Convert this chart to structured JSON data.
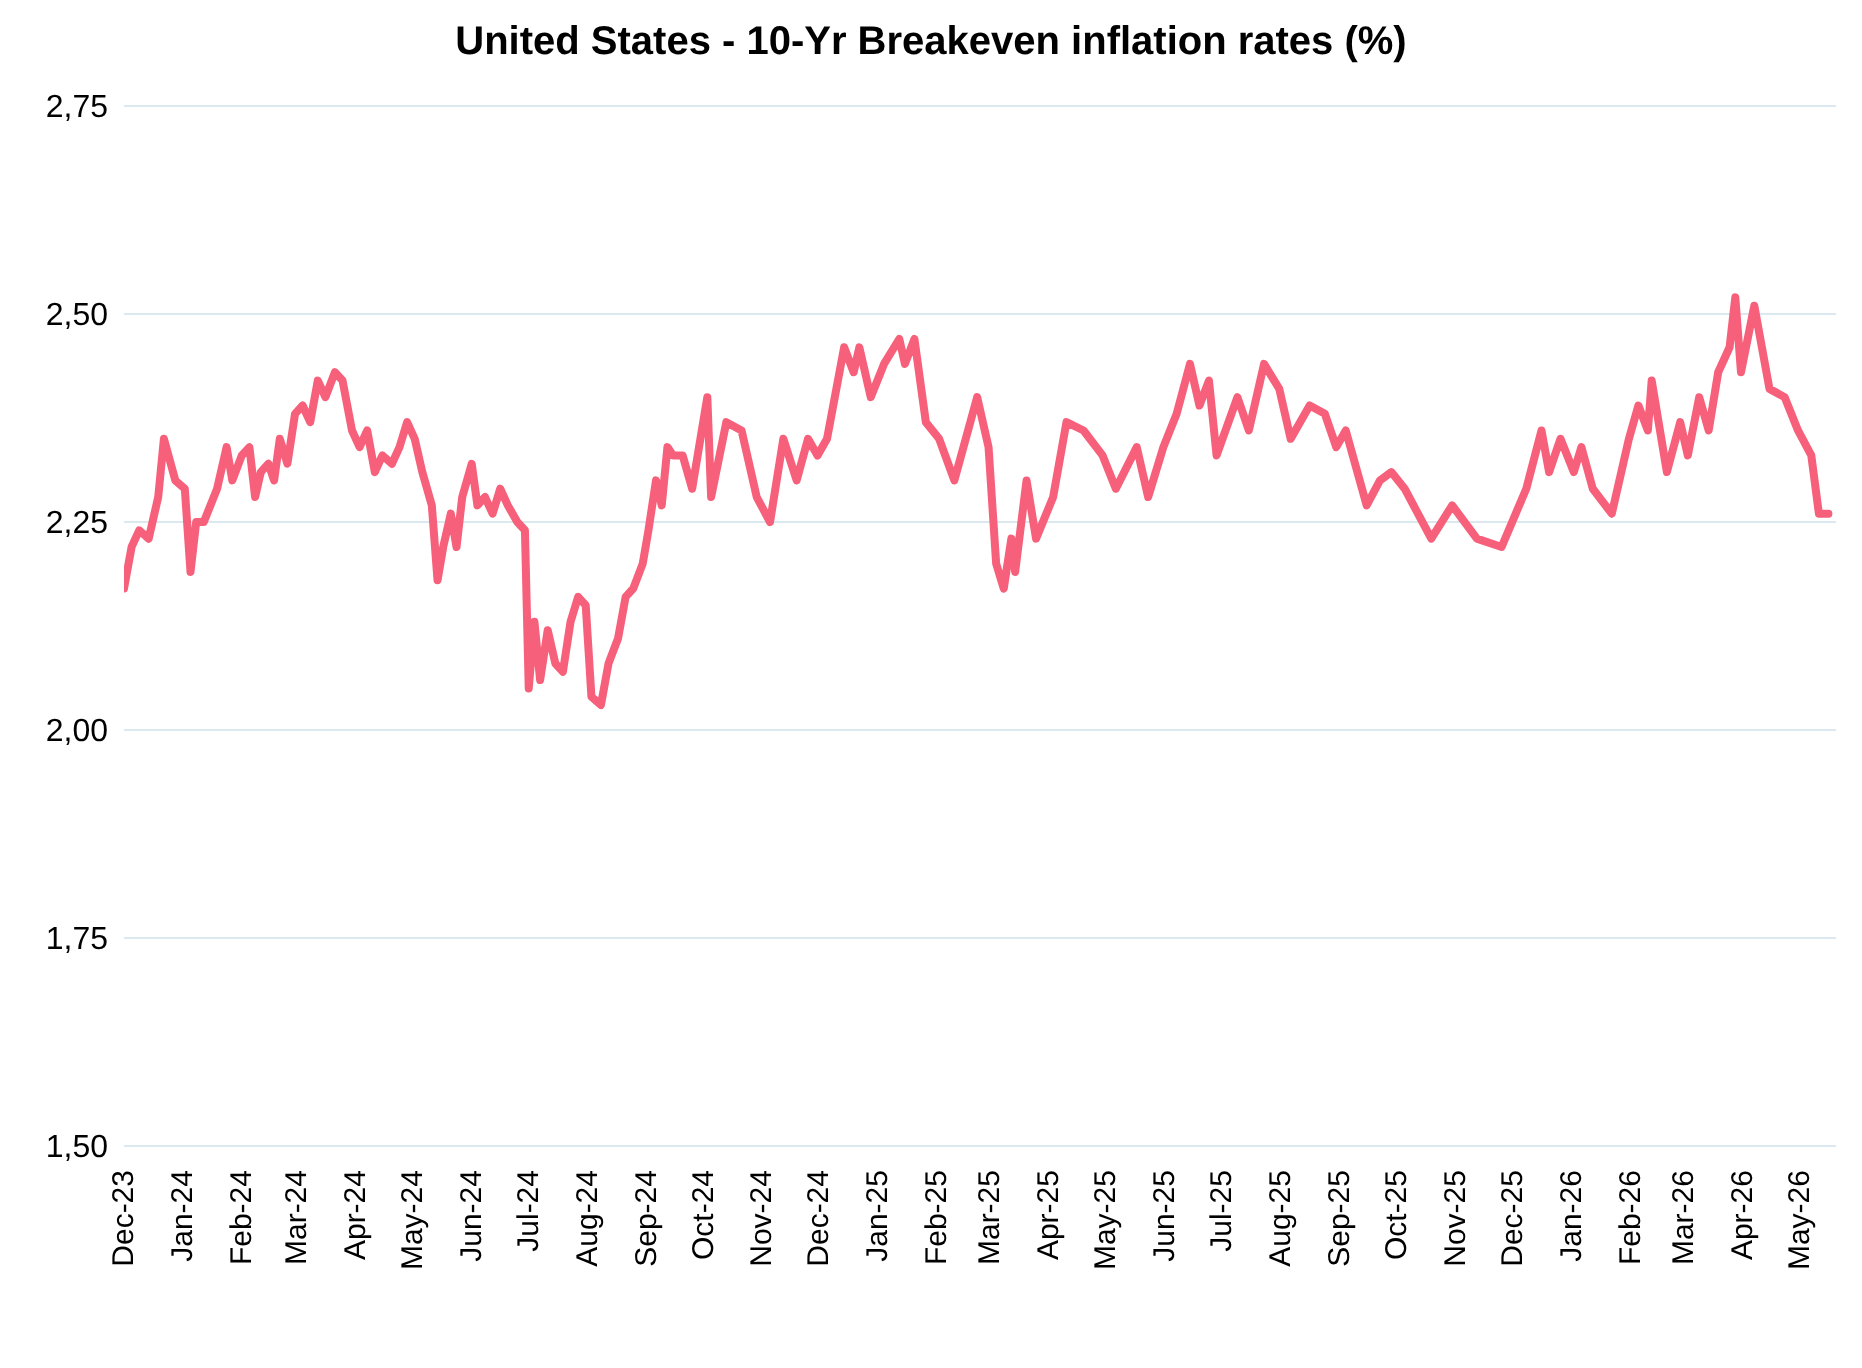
{
  "chart_data": {
    "type": "line",
    "title": "United States - 10-Yr Breakeven inflation rates (%)",
    "color": "#f7607a",
    "grid": "y",
    "marker": "none",
    "line_style": "solid",
    "x": [
      "2023-12-01",
      "2023-12-05",
      "2023-12-09",
      "2023-12-14",
      "2023-12-19",
      "2023-12-22",
      "2023-12-28",
      "2024-01-02",
      "2024-01-05",
      "2024-01-08",
      "2024-01-12",
      "2024-01-19",
      "2024-01-24",
      "2024-01-27",
      "2024-02-01",
      "2024-02-05",
      "2024-02-08",
      "2024-02-11",
      "2024-02-15",
      "2024-02-18",
      "2024-02-21",
      "2024-02-25",
      "2024-02-29",
      "2024-03-04",
      "2024-03-08",
      "2024-03-12",
      "2024-03-16",
      "2024-03-21",
      "2024-03-25",
      "2024-03-30",
      "2024-04-03",
      "2024-04-07",
      "2024-04-11",
      "2024-04-15",
      "2024-04-20",
      "2024-04-24",
      "2024-04-28",
      "2024-05-02",
      "2024-05-06",
      "2024-05-11",
      "2024-05-14",
      "2024-05-17",
      "2024-05-21",
      "2024-05-24",
      "2024-05-27",
      "2024-06-01",
      "2024-06-04",
      "2024-06-08",
      "2024-06-12",
      "2024-06-16",
      "2024-06-20",
      "2024-06-25",
      "2024-06-29",
      "2024-07-01",
      "2024-07-04",
      "2024-07-07",
      "2024-07-11",
      "2024-07-15",
      "2024-07-19",
      "2024-07-23",
      "2024-07-27",
      "2024-07-31",
      "2024-08-03",
      "2024-08-08",
      "2024-08-12",
      "2024-08-17",
      "2024-08-21",
      "2024-08-25",
      "2024-08-30",
      "2024-09-02",
      "2024-09-06",
      "2024-09-09",
      "2024-09-12",
      "2024-09-15",
      "2024-09-20",
      "2024-09-25",
      "2024-10-03",
      "2024-10-05",
      "2024-10-13",
      "2024-10-21",
      "2024-10-29",
      "2024-11-05",
      "2024-11-12",
      "2024-11-19",
      "2024-11-25",
      "2024-11-30",
      "2024-12-05",
      "2024-12-14",
      "2024-12-19",
      "2024-12-22",
      "2024-12-28",
      "2025-01-04",
      "2025-01-12",
      "2025-01-15",
      "2025-01-20",
      "2025-01-26",
      "2025-02-02",
      "2025-02-10",
      "2025-02-22",
      "2025-02-28",
      "2025-03-04",
      "2025-03-08",
      "2025-03-12",
      "2025-03-14",
      "2025-03-20",
      "2025-03-25",
      "2025-04-03",
      "2025-04-10",
      "2025-04-19",
      "2025-04-29",
      "2025-05-06",
      "2025-05-17",
      "2025-05-23",
      "2025-05-31",
      "2025-06-07",
      "2025-06-14",
      "2025-06-19",
      "2025-06-24",
      "2025-06-28",
      "2025-07-09",
      "2025-07-15",
      "2025-07-23",
      "2025-07-31",
      "2025-08-06",
      "2025-08-16",
      "2025-08-24",
      "2025-08-30",
      "2025-09-04",
      "2025-09-15",
      "2025-09-22",
      "2025-09-28",
      "2025-10-05",
      "2025-10-19",
      "2025-10-30",
      "2025-11-12",
      "2025-11-25",
      "2025-12-08",
      "2025-12-16",
      "2025-12-20",
      "2025-12-26",
      "2026-01-02",
      "2026-01-06",
      "2026-01-12",
      "2026-01-22",
      "2026-01-31",
      "2026-02-05",
      "2026-02-10",
      "2026-02-12",
      "2026-02-20",
      "2026-02-27",
      "2026-03-03",
      "2026-03-09",
      "2026-03-14",
      "2026-03-19",
      "2026-03-25",
      "2026-03-28",
      "2026-03-31",
      "2026-04-07",
      "2026-04-15",
      "2026-04-23",
      "2026-04-30",
      "2026-05-07",
      "2026-05-11",
      "2026-05-16"
    ],
    "values": [
      2.17,
      2.22,
      2.24,
      2.23,
      2.28,
      2.35,
      2.3,
      2.29,
      2.19,
      2.25,
      2.25,
      2.29,
      2.34,
      2.3,
      2.33,
      2.34,
      2.28,
      2.31,
      2.32,
      2.3,
      2.35,
      2.32,
      2.38,
      2.39,
      2.37,
      2.42,
      2.4,
      2.43,
      2.42,
      2.36,
      2.34,
      2.36,
      2.31,
      2.33,
      2.32,
      2.34,
      2.37,
      2.35,
      2.31,
      2.27,
      2.18,
      2.22,
      2.26,
      2.22,
      2.28,
      2.32,
      2.27,
      2.28,
      2.26,
      2.29,
      2.27,
      2.25,
      2.24,
      2.05,
      2.13,
      2.06,
      2.12,
      2.08,
      2.07,
      2.13,
      2.16,
      2.15,
      2.04,
      2.03,
      2.08,
      2.11,
      2.16,
      2.17,
      2.2,
      2.24,
      2.3,
      2.27,
      2.34,
      2.33,
      2.33,
      2.29,
      2.4,
      2.28,
      2.37,
      2.36,
      2.28,
      2.25,
      2.35,
      2.3,
      2.35,
      2.33,
      2.35,
      2.46,
      2.43,
      2.46,
      2.4,
      2.44,
      2.47,
      2.44,
      2.47,
      2.37,
      2.35,
      2.3,
      2.4,
      2.34,
      2.2,
      2.17,
      2.23,
      2.19,
      2.3,
      2.23,
      2.28,
      2.37,
      2.36,
      2.33,
      2.29,
      2.34,
      2.28,
      2.34,
      2.38,
      2.44,
      2.39,
      2.42,
      2.33,
      2.4,
      2.36,
      2.44,
      2.41,
      2.35,
      2.39,
      2.38,
      2.34,
      2.36,
      2.27,
      2.3,
      2.31,
      2.29,
      2.23,
      2.27,
      2.23,
      2.22,
      2.29,
      2.36,
      2.31,
      2.35,
      2.31,
      2.34,
      2.29,
      2.26,
      2.35,
      2.39,
      2.36,
      2.42,
      2.31,
      2.37,
      2.33,
      2.4,
      2.36,
      2.43,
      2.46,
      2.52,
      2.43,
      2.51,
      2.41,
      2.4,
      2.36,
      2.33,
      2.26,
      2.26
    ],
    "xlim": [
      "2023-12-01",
      "2026-05-20"
    ],
    "xticks": [
      {
        "value": "2023-12-01",
        "label": "Dec-23"
      },
      {
        "value": "2024-01-01",
        "label": "Jan-24"
      },
      {
        "value": "2024-02-01",
        "label": "Feb-24"
      },
      {
        "value": "2024-03-01",
        "label": "Mar-24"
      },
      {
        "value": "2024-04-01",
        "label": "Apr-24"
      },
      {
        "value": "2024-05-01",
        "label": "May-24"
      },
      {
        "value": "2024-06-01",
        "label": "Jun-24"
      },
      {
        "value": "2024-07-01",
        "label": "Jul-24"
      },
      {
        "value": "2024-08-01",
        "label": "Aug-24"
      },
      {
        "value": "2024-09-01",
        "label": "Sep-24"
      },
      {
        "value": "2024-10-01",
        "label": "Oct-24"
      },
      {
        "value": "2024-11-01",
        "label": "Nov-24"
      },
      {
        "value": "2024-12-01",
        "label": "Dec-24"
      },
      {
        "value": "2025-01-01",
        "label": "Jan-25"
      },
      {
        "value": "2025-02-01",
        "label": "Feb-25"
      },
      {
        "value": "2025-03-01",
        "label": "Mar-25"
      },
      {
        "value": "2025-04-01",
        "label": "Apr-25"
      },
      {
        "value": "2025-05-01",
        "label": "May-25"
      },
      {
        "value": "2025-06-01",
        "label": "Jun-25"
      },
      {
        "value": "2025-07-01",
        "label": "Jul-25"
      },
      {
        "value": "2025-08-01",
        "label": "Aug-25"
      },
      {
        "value": "2025-09-01",
        "label": "Sep-25"
      },
      {
        "value": "2025-10-01",
        "label": "Oct-25"
      },
      {
        "value": "2025-11-01",
        "label": "Nov-25"
      },
      {
        "value": "2025-12-01",
        "label": "Dec-25"
      },
      {
        "value": "2026-01-01",
        "label": "Jan-26"
      },
      {
        "value": "2026-02-01",
        "label": "Feb-26"
      },
      {
        "value": "2026-03-01",
        "label": "Mar-26"
      },
      {
        "value": "2026-04-01",
        "label": "Apr-26"
      },
      {
        "value": "2026-05-01",
        "label": "May-26"
      }
    ],
    "ylim": [
      1.5,
      2.75
    ],
    "yticks": [
      {
        "value": 1.5,
        "label": "1,50"
      },
      {
        "value": 1.75,
        "label": "1,75"
      },
      {
        "value": 2.0,
        "label": "2,00"
      },
      {
        "value": 2.25,
        "label": "2,25"
      },
      {
        "value": 2.5,
        "label": "2,50"
      },
      {
        "value": 2.75,
        "label": "2,75"
      }
    ]
  }
}
